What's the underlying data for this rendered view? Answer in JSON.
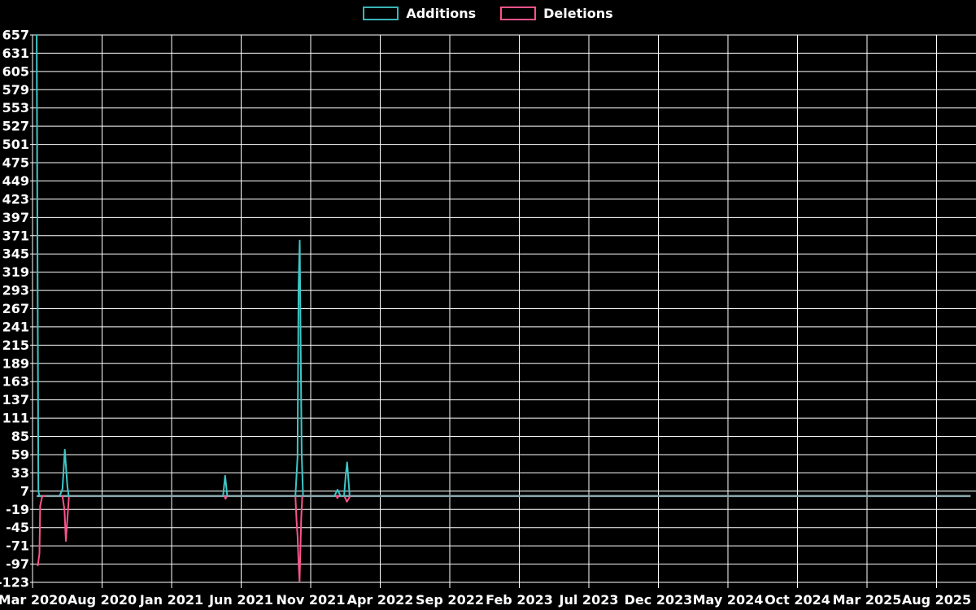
{
  "legend": {
    "items": [
      {
        "label": "Additions",
        "color": "#3ab5b8"
      },
      {
        "label": "Deletions",
        "color": "#f8548b"
      }
    ]
  },
  "chart_data": {
    "type": "line",
    "title": "",
    "description": "Code frequency chart: additions (teal) and deletions (pink) over time, weekly values, mostly zero with a few spikes",
    "grid": true,
    "legend_position": "top-center",
    "colors": {
      "background": "#000000",
      "grid": "#ffffff",
      "text": "#ffffff",
      "additions": "#3ec6c6",
      "deletions": "#f8548b",
      "zero_baseline_overlap": "#8ba9ae"
    },
    "x_axis": {
      "tick_labels": [
        "Mar 2020",
        "Aug 2020",
        "Jan 2021",
        "Jun 2021",
        "Nov 2021",
        "Apr 2022",
        "Sep 2022",
        "Feb 2023",
        "Jul 2023",
        "Dec 2023",
        "May 2024",
        "Oct 2024",
        "Mar 2025",
        "Aug 2025"
      ],
      "months_between_ticks": 5,
      "start_month": "Mar 2020",
      "end_month_offset": 67.45
    },
    "y_axis": {
      "min": -123,
      "max": 657,
      "step": 26,
      "ticks": [
        657,
        631,
        605,
        579,
        553,
        527,
        501,
        475,
        449,
        423,
        397,
        371,
        345,
        319,
        293,
        267,
        241,
        215,
        189,
        163,
        137,
        111,
        85,
        59,
        33,
        7,
        -19,
        -45,
        -71,
        -97,
        -123
      ]
    },
    "baseline": {
      "value": 0,
      "from_month": 0.3,
      "to_month": 67.45
    },
    "series": [
      {
        "name": "Additions",
        "color": "#3ec6c6",
        "peak_values": [
          657,
          66,
          29,
          364,
          9,
          48
        ],
        "segments": [
          [
            [
              0.3,
              657
            ],
            [
              0.42,
              7
            ],
            [
              0.5,
              0
            ],
            [
              0.65,
              0
            ]
          ],
          [
            [
              1.95,
              0
            ],
            [
              2.15,
              10
            ],
            [
              2.22,
              33
            ],
            [
              2.32,
              66
            ],
            [
              2.5,
              14
            ],
            [
              2.6,
              0
            ]
          ],
          [
            [
              13.7,
              0
            ],
            [
              13.85,
              29
            ],
            [
              14.0,
              0
            ]
          ],
          [
            [
              18.9,
              0
            ],
            [
              19.05,
              55
            ],
            [
              19.13,
              300
            ],
            [
              19.21,
              364
            ],
            [
              19.35,
              60
            ],
            [
              19.45,
              0
            ]
          ],
          [
            [
              21.7,
              0
            ],
            [
              21.93,
              9
            ],
            [
              22.15,
              0
            ]
          ],
          [
            [
              22.4,
              0
            ],
            [
              22.52,
              30
            ],
            [
              22.62,
              48
            ],
            [
              22.8,
              0
            ]
          ]
        ]
      },
      {
        "name": "Deletions",
        "color": "#f8548b",
        "peak_values": [
          -99,
          -64,
          -4,
          -122,
          -3,
          -8
        ],
        "segments": [
          [
            [
              0.38,
              -99
            ],
            [
              0.5,
              -82
            ],
            [
              0.55,
              -14
            ],
            [
              0.7,
              0
            ],
            [
              0.9,
              0
            ]
          ],
          [
            [
              2.15,
              0
            ],
            [
              2.3,
              -20
            ],
            [
              2.4,
              -64
            ],
            [
              2.55,
              -20
            ],
            [
              2.62,
              0
            ]
          ],
          [
            [
              13.8,
              0
            ],
            [
              13.88,
              -4
            ],
            [
              13.97,
              0
            ]
          ],
          [
            [
              18.9,
              0
            ],
            [
              18.98,
              -35
            ],
            [
              19.06,
              -58
            ],
            [
              19.12,
              -93
            ],
            [
              19.2,
              -122
            ],
            [
              19.32,
              -30
            ],
            [
              19.4,
              0
            ]
          ],
          [
            [
              21.85,
              0
            ],
            [
              21.92,
              -3
            ],
            [
              22.0,
              0
            ]
          ],
          [
            [
              22.42,
              0
            ],
            [
              22.6,
              -8
            ],
            [
              22.85,
              0
            ]
          ]
        ]
      }
    ]
  }
}
